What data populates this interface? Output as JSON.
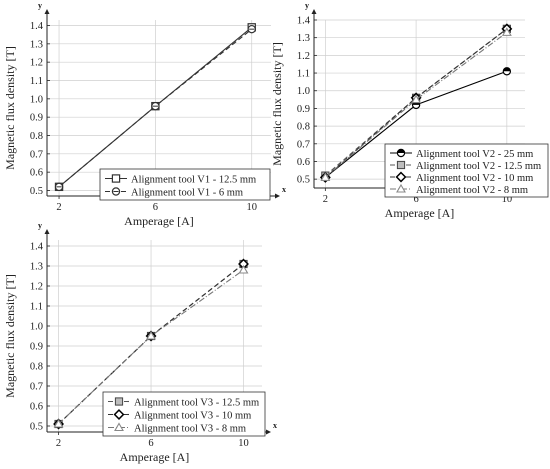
{
  "chart_data": [
    {
      "type": "line",
      "x": [
        2,
        6,
        10
      ],
      "xticks": [
        "2",
        "6",
        "10"
      ],
      "xlabel": "Amperage [A]",
      "ylabel": "Magnetic flux density [T]",
      "axis_x_letter": "x",
      "axis_y_letter": "y",
      "xlim": [
        1.5,
        10.8
      ],
      "ylim": [
        0.47,
        1.43
      ],
      "yticks": [
        "0.5",
        "0.6",
        "0.7",
        "0.8",
        "0.9",
        "1.0",
        "1.1",
        "1.2",
        "1.3",
        "1.4"
      ],
      "grid": true,
      "legend_position": "bottom-right",
      "series": [
        {
          "name": "Alignment tool V1 - 12.5 mm",
          "values": [
            0.52,
            0.96,
            1.39
          ],
          "marker": "square",
          "line": "solid",
          "color": "#333333"
        },
        {
          "name": "Alignment tool V1 - 6 mm",
          "values": [
            0.52,
            0.96,
            1.38
          ],
          "marker": "circle",
          "line": "dash",
          "color": "#333333"
        }
      ]
    },
    {
      "type": "line",
      "x": [
        2,
        6,
        10
      ],
      "xticks": [
        "2",
        "6",
        "10"
      ],
      "xlabel": "Amperage [A]",
      "ylabel": "Magnetic flux density [T]",
      "axis_x_letter": "x",
      "axis_y_letter": "y",
      "xlim": [
        1.5,
        10.8
      ],
      "ylim": [
        0.45,
        1.4
      ],
      "yticks": [
        "0.5",
        "0.6",
        "0.7",
        "0.8",
        "0.9",
        "1.0",
        "1.1",
        "1.2",
        "1.3",
        "1.4"
      ],
      "grid": true,
      "legend_position": "bottom-right",
      "series": [
        {
          "name": "Alignment tool V2 - 25 mm",
          "values": [
            0.51,
            0.92,
            1.11
          ],
          "marker": "circle-half",
          "line": "solid",
          "color": "#000000"
        },
        {
          "name": "Alignment tool V2 - 12.5 mm",
          "values": [
            0.52,
            0.96,
            1.35
          ],
          "marker": "square-gray",
          "line": "dash",
          "color": "#555555"
        },
        {
          "name": "Alignment tool V2 - 10 mm",
          "values": [
            0.51,
            0.96,
            1.35
          ],
          "marker": "diamond",
          "line": "dash",
          "color": "#333333"
        },
        {
          "name": "Alignment tool V2 - 8 mm",
          "values": [
            0.51,
            0.95,
            1.33
          ],
          "marker": "triangle",
          "line": "dashdot",
          "color": "#777777"
        }
      ]
    },
    {
      "type": "line",
      "x": [
        2,
        6,
        10
      ],
      "xticks": [
        "2",
        "6",
        "10"
      ],
      "xlabel": "Amperage [A]",
      "ylabel": "Magnetic flux density [T]",
      "axis_x_letter": "x",
      "axis_y_letter": "y",
      "xlim": [
        1.5,
        10.8
      ],
      "ylim": [
        0.47,
        1.43
      ],
      "yticks": [
        "0.5",
        "0.6",
        "0.7",
        "0.8",
        "0.9",
        "1.0",
        "1.1",
        "1.2",
        "1.3",
        "1.4"
      ],
      "grid": true,
      "legend_position": "bottom-right",
      "series": [
        {
          "name": "Alignment tool V3 - 12.5 mm",
          "values": [
            0.51,
            0.95,
            1.31
          ],
          "marker": "square-gray",
          "line": "dash",
          "color": "#555555"
        },
        {
          "name": "Alignment tool V3 - 10 mm",
          "values": [
            0.51,
            0.95,
            1.31
          ],
          "marker": "diamond",
          "line": "dash",
          "color": "#333333"
        },
        {
          "name": "Alignment tool V3 - 8 mm",
          "values": [
            0.51,
            0.95,
            1.28
          ],
          "marker": "triangle",
          "line": "dashdot",
          "color": "#777777"
        }
      ]
    }
  ]
}
